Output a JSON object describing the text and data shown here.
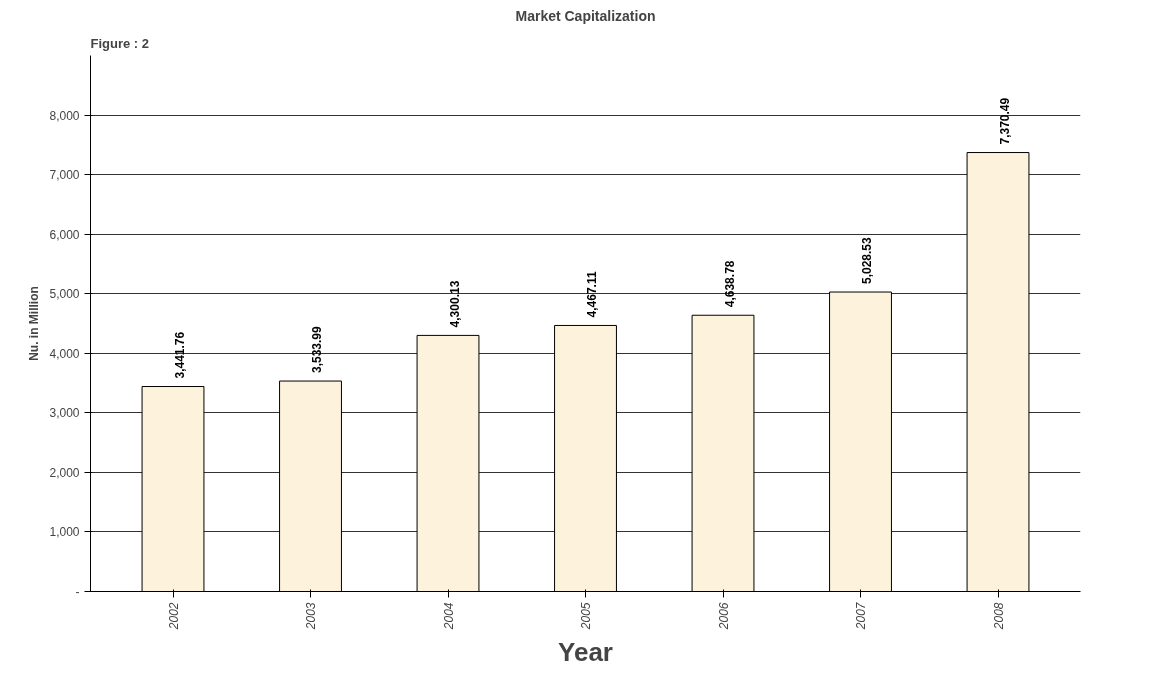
{
  "chart_data": {
    "type": "bar",
    "title": "Market Capitalization",
    "annotations": [
      "Figure : 2"
    ],
    "xlabel": "Year",
    "ylabel": "Nu. in Million",
    "categories": [
      "2002",
      "2003",
      "2004",
      "2005",
      "2006",
      "2007",
      "2008"
    ],
    "values": [
      3441.76,
      3533.99,
      4300.13,
      4467.11,
      4638.78,
      5028.53,
      7370.49
    ],
    "color": "#fdf3dc",
    "value_labels": [
      "3,441.76",
      "3,533.99",
      "4,300.13",
      "4,467.11",
      "4,638.78",
      "5,028.53",
      "7,370.49"
    ],
    "grid": "y",
    "ylim": [
      0,
      9000
    ],
    "yticks": [
      {
        "value": 0,
        "label": "-"
      },
      {
        "value": 1000,
        "label": "1,000"
      },
      {
        "value": 2000,
        "label": "2,000"
      },
      {
        "value": 3000,
        "label": "3,000"
      },
      {
        "value": 4000,
        "label": "4,000"
      },
      {
        "value": 5000,
        "label": "5,000"
      },
      {
        "value": 6000,
        "label": "6,000"
      },
      {
        "value": 7000,
        "label": "7,000"
      },
      {
        "value": 8000,
        "label": "8,000"
      }
    ]
  }
}
